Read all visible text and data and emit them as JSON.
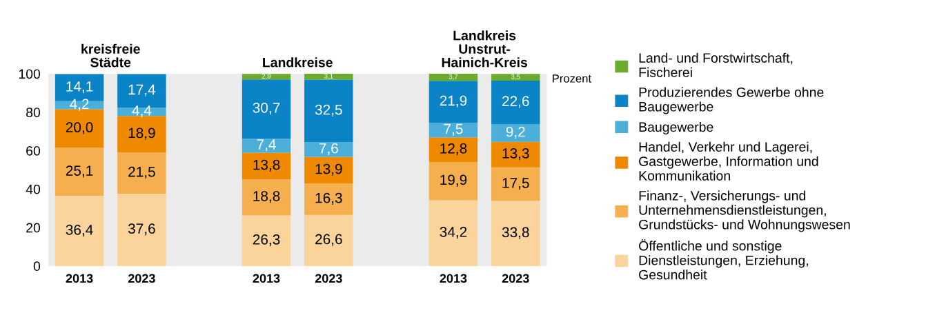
{
  "chart_data": {
    "type": "bar",
    "stacked": true,
    "categories": [
      "2013",
      "2023",
      null,
      "2013",
      "2023",
      null,
      "2013",
      "2023"
    ],
    "series": [
      {
        "name": "Öffentliche und sonstige\nDienstleistungen, Erziehung,\nGesundheit",
        "color": "#fad49a",
        "values": [
          36.4,
          37.6,
          null,
          26.3,
          26.6,
          null,
          34.2,
          33.8
        ],
        "value_labels": [
          "36,4",
          "37,6",
          null,
          "26,3",
          "26,6",
          null,
          "34,2",
          "33,8"
        ]
      },
      {
        "name": "Finanz-, Versicherungs- und\nUnternehmensdienstleistungen,\nGrundstücks- und Wohnungswesen",
        "color": "#f5af4e",
        "values": [
          25.1,
          21.5,
          null,
          18.8,
          16.3,
          null,
          19.9,
          17.5
        ],
        "value_labels": [
          "25,1",
          "21,5",
          null,
          "18,8",
          "16,3",
          null,
          "19,9",
          "17,5"
        ]
      },
      {
        "name": "Handel, Verkehr und Lagerei,\nGastgewerbe, Information und\nKommunikation",
        "color": "#ef8a00",
        "values": [
          20.0,
          18.9,
          null,
          13.8,
          13.9,
          null,
          12.8,
          13.3
        ],
        "value_labels": [
          "20,0",
          "18,9",
          null,
          "13,8",
          "13,9",
          null,
          "12,8",
          "13,3"
        ]
      },
      {
        "name": "Baugewerbe",
        "color": "#4bafd9",
        "values": [
          4.2,
          4.4,
          null,
          7.4,
          7.6,
          null,
          7.5,
          9.2
        ],
        "value_labels": [
          "4,2",
          "4,4",
          null,
          "7,4",
          "7,6",
          null,
          "7,5",
          "9,2"
        ]
      },
      {
        "name": "Produzierendes Gewerbe ohne\nBaugewerbe",
        "color": "#0a84c6",
        "values": [
          14.1,
          17.4,
          null,
          30.7,
          32.5,
          null,
          21.9,
          22.6
        ],
        "value_labels": [
          "14,1",
          "17,4",
          null,
          "30,7",
          "32,5",
          null,
          "21,9",
          "22,6"
        ]
      },
      {
        "name": "Land- und Forstwirtschaft,\nFischerei",
        "color": "#6aab2e",
        "values": [
          null,
          null,
          null,
          2.9,
          3.1,
          null,
          3.7,
          3.5
        ],
        "value_labels": [
          null,
          null,
          null,
          "2,9",
          "3,1",
          null,
          "3,7",
          "3,5"
        ]
      }
    ],
    "ylim": [
      0,
      100
    ],
    "yticks": [
      0,
      20,
      40,
      60,
      80,
      100
    ],
    "ylabel": "Prozent",
    "annotations": [
      "kreisfreie\nStädte",
      "Landkreise",
      "Landkreis\nUnstrut-\nHainich-Kreis"
    ],
    "grid": false,
    "legend": "right"
  }
}
